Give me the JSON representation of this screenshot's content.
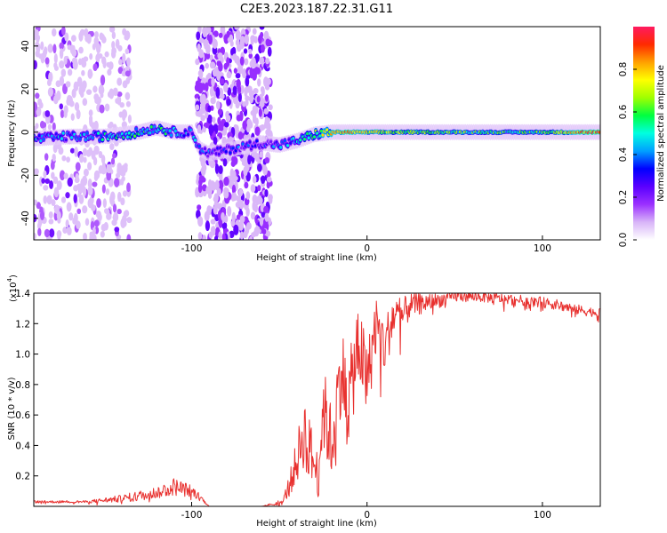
{
  "title": "C2E3.2023.187.22.31.G11",
  "chart_data": [
    {
      "type": "heatmap",
      "xlabel": "Height of straight line (km)",
      "ylabel": "Frequency (Hz)",
      "xlim": [
        -190,
        133
      ],
      "ylim": [
        -50,
        49
      ],
      "xticks": [
        -100,
        0,
        100
      ],
      "xticklabels": [
        "-100",
        "0",
        "100"
      ],
      "yticks": [
        -40,
        -20,
        0,
        20,
        40
      ],
      "yticklabels": [
        "-40",
        "-20",
        "0",
        "20",
        "40"
      ],
      "colorbar": {
        "label": "Normalized spectral amplitude",
        "range": [
          0,
          1
        ],
        "ticks": [
          0,
          0.2,
          0.4,
          0.6,
          0.8
        ],
        "ticklabels": [
          "0.0",
          "0.2",
          "0.4",
          "0.6",
          "0.8"
        ],
        "colormap": [
          "#ffffff",
          "#d8b4f8",
          "#9b30ff",
          "#5a00ff",
          "#0000ff",
          "#00a0ff",
          "#00ffe0",
          "#00ff40",
          "#a0ff00",
          "#ffff00",
          "#ffa000",
          "#ff2a00",
          "#ff1a60"
        ]
      },
      "ridge": {
        "x": [
          -190,
          -170,
          -150,
          -130,
          -120,
          -110,
          -100,
          -95,
          -90,
          -60,
          -50,
          -40,
          -30,
          -20,
          -10,
          0,
          20,
          50,
          80,
          100,
          133
        ],
        "y": [
          -3,
          -2,
          -2,
          0,
          2,
          0,
          0,
          -8,
          -10,
          -5,
          -6,
          -4,
          -1,
          0,
          0,
          0,
          0,
          0,
          0,
          0,
          0
        ],
        "amplitude": [
          0.4,
          0.4,
          0.45,
          0.5,
          0.5,
          0.45,
          0.4,
          0.3,
          0.3,
          0.3,
          0.35,
          0.4,
          0.55,
          0.8,
          0.85,
          0.75,
          0.65,
          0.6,
          0.55,
          0.6,
          0.9
        ]
      },
      "noise_regions": [
        {
          "x": [
            -190,
            -135
          ],
          "density": "medium"
        },
        {
          "x": [
            -97,
            -55
          ],
          "density": "high"
        }
      ]
    },
    {
      "type": "line",
      "xlabel": "Height of straight line (km)",
      "ylabel": "SNR (10 * v/v)",
      "y_multiplier": "(x10",
      "y_multiplier_exp": "4",
      "y_multiplier_close": ")",
      "xlim": [
        -190,
        133
      ],
      "ylim": [
        0,
        14000
      ],
      "xticks": [
        -100,
        0,
        100
      ],
      "xticklabels": [
        "-100",
        "0",
        "100"
      ],
      "yticks": [
        2000,
        4000,
        6000,
        8000,
        10000,
        12000,
        14000
      ],
      "yticklabels": [
        "0.2",
        "0.4",
        "0.6",
        "0.8",
        "1.0",
        "1.2",
        "1.4"
      ],
      "color": "#e8312f",
      "series": [
        {
          "x": [
            -190,
            -160,
            -140,
            -120,
            -110,
            -100,
            -95,
            -90,
            -60,
            -48,
            -44,
            -40,
            -36,
            -32,
            -28,
            -25,
            -20,
            -15,
            -10,
            -5,
            0,
            5,
            10,
            15,
            20,
            25,
            30,
            40,
            50,
            60,
            80,
            100,
            110,
            120,
            133
          ],
          "y": [
            300,
            300,
            500,
            900,
            1300,
            1000,
            600,
            0,
            0,
            300,
            1500,
            3000,
            5000,
            3500,
            2000,
            6500,
            4000,
            9000,
            7000,
            11000,
            8000,
            12000,
            10500,
            12500,
            12500,
            13200,
            13300,
            13500,
            13800,
            13800,
            13600,
            13400,
            13200,
            12900,
            12700
          ],
          "noise": [
            80,
            80,
            250,
            400,
            600,
            400,
            200,
            0,
            0,
            200,
            800,
            1500,
            2500,
            2000,
            1500,
            2800,
            2500,
            3000,
            3000,
            2800,
            2500,
            2200,
            1800,
            1500,
            1200,
            800,
            700,
            500,
            400,
            350,
            350,
            350,
            350,
            350,
            300
          ]
        }
      ]
    }
  ]
}
